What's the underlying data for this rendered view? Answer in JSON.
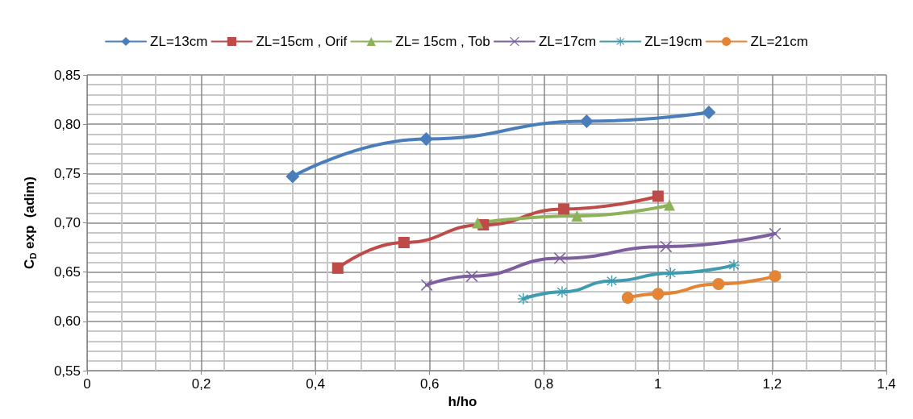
{
  "chart_data": {
    "type": "line",
    "xlabel": "h/ho",
    "ylabel": "C$_{D}$ exp  (adim)",
    "xlim": [
      0,
      1.4
    ],
    "xticks": [
      {
        "value": 0,
        "label": "0"
      },
      {
        "value": 0.2,
        "label": "0,2"
      },
      {
        "value": 0.4,
        "label": "0,4"
      },
      {
        "value": 0.6,
        "label": "0,6"
      },
      {
        "value": 0.8,
        "label": "0,8"
      },
      {
        "value": 1,
        "label": "1"
      },
      {
        "value": 1.2,
        "label": "1,2"
      },
      {
        "value": 1.4,
        "label": "1,4"
      }
    ],
    "ylim": [
      0.55,
      0.85
    ],
    "yticks": [
      {
        "value": 0.55,
        "label": "0,55"
      },
      {
        "value": 0.6,
        "label": "0,60"
      },
      {
        "value": 0.65,
        "label": "0,65"
      },
      {
        "value": 0.7,
        "label": "0,70"
      },
      {
        "value": 0.75,
        "label": "0,75"
      },
      {
        "value": 0.8,
        "label": "0,80"
      },
      {
        "value": 0.85,
        "label": "0,85"
      }
    ],
    "grid": true,
    "legend": "top",
    "series": [
      {
        "name": "ZL=13cm",
        "color": "#4a7ebb",
        "marker": "diamond",
        "x": [
          0.36,
          0.594,
          0.875,
          1.089
        ],
        "values": [
          0.747,
          0.785,
          0.803,
          0.812
        ]
      },
      {
        "name": "ZL=15cm , Orif",
        "color": "#be4b48",
        "marker": "square",
        "x": [
          0.439,
          0.555,
          0.694,
          0.835,
          1.0
        ],
        "values": [
          0.654,
          0.68,
          0.698,
          0.714,
          0.727
        ]
      },
      {
        "name": "ZL= 15cm , Tob",
        "color": "#8cb357",
        "marker": "triangle",
        "x": [
          0.684,
          0.858,
          1.02
        ],
        "values": [
          0.7,
          0.707,
          0.718
        ]
      },
      {
        "name": "ZL=17cm",
        "color": "#7d5fa0",
        "marker": "cross",
        "x": [
          0.595,
          0.674,
          0.828,
          1.014,
          1.205
        ],
        "values": [
          0.637,
          0.646,
          0.664,
          0.676,
          0.689
        ]
      },
      {
        "name": "ZL=19cm",
        "color": "#3e9bb0",
        "marker": "star",
        "x": [
          0.764,
          0.832,
          0.919,
          1.022,
          1.133
        ],
        "values": [
          0.623,
          0.63,
          0.641,
          0.649,
          0.657
        ]
      },
      {
        "name": "ZL=21cm",
        "color": "#e38535",
        "marker": "circle",
        "x": [
          0.947,
          1.0,
          1.106,
          1.205
        ],
        "values": [
          0.624,
          0.628,
          0.638,
          0.646
        ]
      }
    ]
  }
}
